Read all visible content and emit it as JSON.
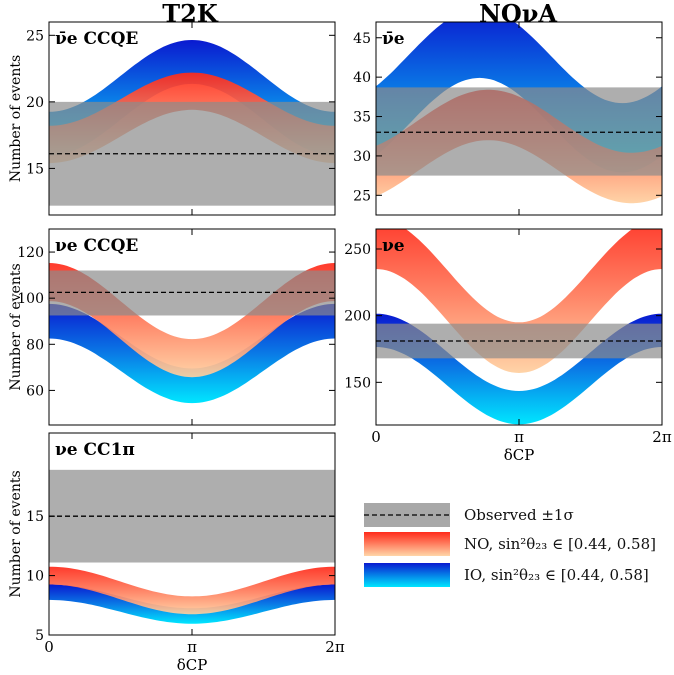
{
  "column_titles": {
    "left": "T2K",
    "right": "NOνA"
  },
  "x_axis": {
    "label": "δCP",
    "ticks": [
      "0",
      "π",
      "2π"
    ]
  },
  "y_axis_label": "Number of events",
  "legend": {
    "observed": "Observed ±1σ",
    "no": "NO, sin²θ₂₃ ∈ [0.44, 0.58]",
    "io": "IO, sin²θ₂₃ ∈ [0.44, 0.58]"
  },
  "colors": {
    "no_dark": "#ff2a1a",
    "no_light": "#ffd0a0",
    "io_dark": "#0a1ad0",
    "io_light": "#00e6ff",
    "band": "#a8a8a8"
  },
  "chart_data": [
    {
      "id": "t2k-nubar-ccqe",
      "title": "ν̄e CCQE",
      "type": "area",
      "xlim": [
        0,
        6.2832
      ],
      "ylim": [
        11.5,
        26
      ],
      "yticks": [
        15,
        20,
        25
      ],
      "ylabel": "Number of events",
      "observed": {
        "mean": 16.1,
        "low": 12.2,
        "high": 20.0
      },
      "NO": {
        "offset": 18.8,
        "amp": 2.0,
        "phase": -1.5708,
        "width": 2.8
      },
      "IO": {
        "offset": 20.3,
        "amp": 2.7,
        "phase": -1.5708,
        "width": 3.3
      }
    },
    {
      "id": "nova-nubar",
      "title": "ν̄e",
      "type": "area",
      "xlim": [
        0,
        6.2832
      ],
      "ylim": [
        22.5,
        47
      ],
      "yticks": [
        25,
        30,
        35,
        40,
        45
      ],
      "ylabel": "",
      "observed": {
        "mean": 33.0,
        "low": 27.5,
        "high": 38.7
      },
      "NO": {
        "offset": 31.2,
        "amp": 4.0,
        "phase": -0.9,
        "width": 6.4
      },
      "IO": {
        "offset": 38.3,
        "amp": 6.0,
        "phase": -0.7,
        "width": 8.8
      }
    },
    {
      "id": "t2k-nu-ccqe",
      "title": "νe CCQE",
      "type": "area",
      "xlim": [
        0,
        6.2832
      ],
      "ylim": [
        45,
        130
      ],
      "yticks": [
        60,
        80,
        100,
        120
      ],
      "ylabel": "Number of events",
      "observed": {
        "mean": 102.5,
        "low": 92.5,
        "high": 112.0
      },
      "NO": {
        "offset": 90.5,
        "amp": 16.5,
        "phase": 1.5708,
        "width": 16.5
      },
      "IO": {
        "offset": 76.0,
        "amp": 14.0,
        "phase": 1.5708,
        "width": 15.0
      }
    },
    {
      "id": "nova-nu",
      "title": "νe",
      "type": "area",
      "xlim": [
        0,
        6.2832
      ],
      "ylim": [
        118,
        265
      ],
      "yticks": [
        150,
        200,
        250
      ],
      "ylabel": "",
      "observed": {
        "mean": 181.0,
        "low": 168.0,
        "high": 194.0
      },
      "NO": {
        "offset": 215.0,
        "amp": 39.0,
        "phase": 1.5708,
        "width": 38.0
      },
      "IO": {
        "offset": 160.0,
        "amp": 29.0,
        "phase": 1.5708,
        "width": 25.0
      }
    },
    {
      "id": "t2k-nu-cc1pi",
      "title": "νe CC1π",
      "type": "area",
      "xlim": [
        0,
        6.2832
      ],
      "ylim": [
        5,
        22
      ],
      "yticks": [
        5,
        10,
        15
      ],
      "ylabel": "Number of events",
      "observed": {
        "mean": 15.0,
        "low": 11.1,
        "high": 18.9
      },
      "NO": {
        "offset": 8.75,
        "amp": 1.25,
        "phase": 1.5708,
        "width": 1.5
      },
      "IO": {
        "offset": 7.6,
        "amp": 1.0,
        "phase": 1.5708,
        "width": 1.3
      }
    }
  ]
}
